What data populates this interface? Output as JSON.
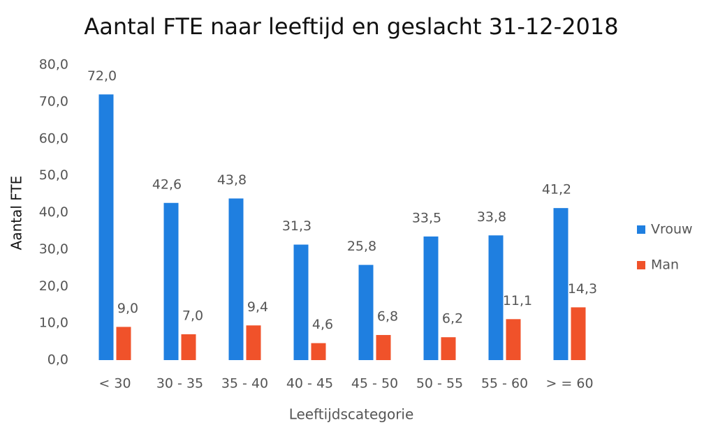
{
  "chart_data": {
    "type": "bar",
    "title": "Aantal FTE naar leeftijd en geslacht 31-12-2018",
    "x_label": "Leeftijdscategorie",
    "y_label": "Aantal FTE",
    "categories": [
      "< 30",
      "30 - 35",
      "35 - 40",
      "40 - 45",
      "45 - 50",
      "50 - 55",
      "55 - 60",
      "> = 60"
    ],
    "series": [
      {
        "name": "Vrouw",
        "color": "#1f7fe0",
        "values": [
          72.0,
          42.6,
          43.8,
          31.3,
          25.8,
          33.5,
          33.8,
          41.2
        ],
        "value_labels": [
          "72,0",
          "42,6",
          "43,8",
          "31,3",
          "25,8",
          "33,5",
          "33,8",
          "41,2"
        ]
      },
      {
        "name": "Man",
        "color": "#f0522a",
        "values": [
          9.0,
          7.0,
          9.4,
          4.6,
          6.8,
          6.2,
          11.1,
          14.3
        ],
        "value_labels": [
          "9,0",
          "7,0",
          "9,4",
          "4,6",
          "6,8",
          "6,2",
          "11,1",
          "14,3"
        ]
      }
    ],
    "ylim": [
      0,
      80
    ],
    "yticks": [
      {
        "value": 0,
        "label": "0,0"
      },
      {
        "value": 10,
        "label": "10,0"
      },
      {
        "value": 20,
        "label": "20,0"
      },
      {
        "value": 30,
        "label": "30,0"
      },
      {
        "value": 40,
        "label": "40,0"
      },
      {
        "value": 50,
        "label": "50,0"
      },
      {
        "value": 60,
        "label": "60,0"
      },
      {
        "value": 70,
        "label": "70,0"
      },
      {
        "value": 80,
        "label": "80,0"
      }
    ],
    "grid": false,
    "legend": "right"
  }
}
